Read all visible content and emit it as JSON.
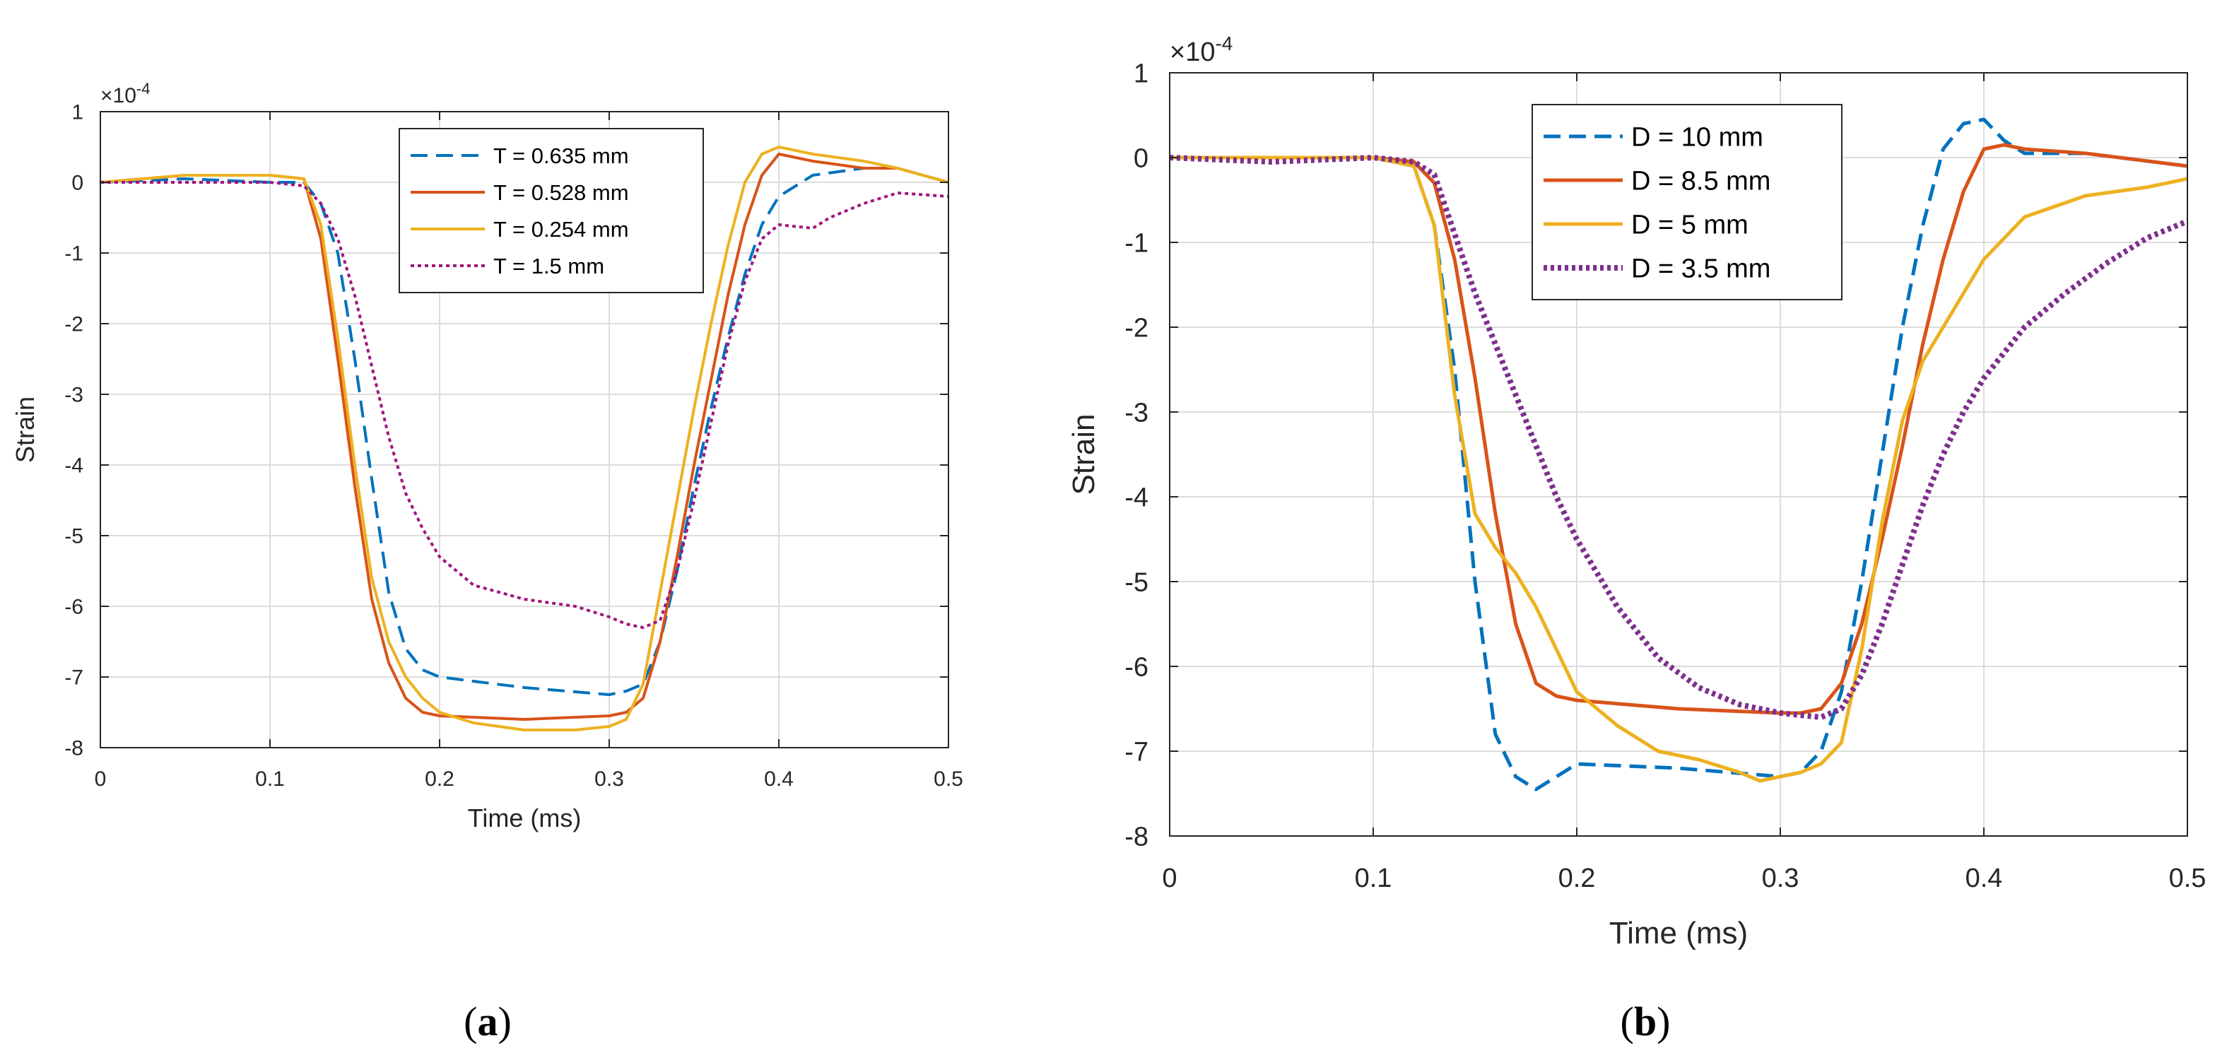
{
  "chart_data": [
    {
      "panel": "a",
      "caption": "a",
      "type": "line",
      "xlabel": "Time (ms)",
      "ylabel": "Strain",
      "exponent_label": "×10",
      "exponent_power": "-4",
      "xlim": [
        0,
        0.5
      ],
      "ylim": [
        -8,
        1
      ],
      "xticks": [
        0,
        0.1,
        0.2,
        0.3,
        0.4,
        0.5
      ],
      "xtick_labels": [
        "0",
        "0.1",
        "0.2",
        "0.3",
        "0.4",
        "0.5"
      ],
      "yticks": [
        1,
        0,
        -1,
        -2,
        -3,
        -4,
        -5,
        -6,
        -7,
        -8
      ],
      "ytick_labels": [
        "1",
        "0",
        "-1",
        "-2",
        "-3",
        "-4",
        "-5",
        "-6",
        "-7",
        "-8"
      ],
      "grid": true,
      "legend_position": "top-right",
      "series": [
        {
          "name": "T = 0.635 mm",
          "color": "#0072BD",
          "dash": "dashed",
          "x": [
            0,
            0.05,
            0.1,
            0.12,
            0.13,
            0.14,
            0.15,
            0.16,
            0.17,
            0.18,
            0.19,
            0.2,
            0.25,
            0.3,
            0.31,
            0.32,
            0.33,
            0.34,
            0.35,
            0.36,
            0.37,
            0.38,
            0.39,
            0.4,
            0.42,
            0.45,
            0.47,
            0.5
          ],
          "y": [
            0,
            0.05,
            0,
            0,
            -0.3,
            -1.0,
            -2.5,
            -4.2,
            -5.8,
            -6.6,
            -6.9,
            -7.0,
            -7.15,
            -7.25,
            -7.2,
            -7.1,
            -6.5,
            -5.5,
            -4.3,
            -3.2,
            -2.2,
            -1.3,
            -0.6,
            -0.2,
            0.1,
            0.2,
            0.2,
            0
          ]
        },
        {
          "name": "T = 0.528 mm",
          "color": "#D95319",
          "dash": "solid",
          "x": [
            0,
            0.05,
            0.1,
            0.12,
            0.13,
            0.14,
            0.15,
            0.16,
            0.17,
            0.18,
            0.19,
            0.2,
            0.25,
            0.3,
            0.31,
            0.32,
            0.33,
            0.34,
            0.35,
            0.36,
            0.37,
            0.38,
            0.39,
            0.4,
            0.42,
            0.45,
            0.47,
            0.5
          ],
          "y": [
            0,
            0.1,
            0.1,
            0.05,
            -0.8,
            -2.5,
            -4.3,
            -5.9,
            -6.8,
            -7.3,
            -7.5,
            -7.55,
            -7.6,
            -7.55,
            -7.5,
            -7.3,
            -6.5,
            -5.3,
            -4.0,
            -2.8,
            -1.6,
            -0.6,
            0.1,
            0.4,
            0.3,
            0.2,
            0.2,
            0
          ]
        },
        {
          "name": "T = 0.254 mm",
          "color": "#EDB120",
          "dash": "solid",
          "x": [
            0,
            0.05,
            0.1,
            0.12,
            0.13,
            0.14,
            0.15,
            0.16,
            0.17,
            0.18,
            0.19,
            0.2,
            0.22,
            0.25,
            0.28,
            0.3,
            0.31,
            0.32,
            0.33,
            0.34,
            0.35,
            0.36,
            0.37,
            0.38,
            0.39,
            0.4,
            0.42,
            0.45,
            0.47,
            0.5
          ],
          "y": [
            0,
            0.1,
            0.1,
            0.05,
            -0.6,
            -2.2,
            -4.0,
            -5.6,
            -6.5,
            -7.0,
            -7.3,
            -7.5,
            -7.65,
            -7.75,
            -7.75,
            -7.7,
            -7.6,
            -7.1,
            -5.8,
            -4.5,
            -3.2,
            -2.0,
            -0.9,
            0,
            0.4,
            0.5,
            0.4,
            0.3,
            0.2,
            0
          ]
        },
        {
          "name": "T = 1.5 mm",
          "color": "#A2147E",
          "dash": "dotted",
          "x": [
            0,
            0.05,
            0.1,
            0.12,
            0.13,
            0.14,
            0.15,
            0.16,
            0.17,
            0.18,
            0.19,
            0.2,
            0.22,
            0.25,
            0.28,
            0.3,
            0.31,
            0.32,
            0.33,
            0.34,
            0.35,
            0.36,
            0.37,
            0.38,
            0.39,
            0.4,
            0.42,
            0.43,
            0.45,
            0.47,
            0.5
          ],
          "y": [
            0,
            0,
            0,
            -0.05,
            -0.3,
            -0.8,
            -1.6,
            -2.6,
            -3.6,
            -4.4,
            -4.9,
            -5.3,
            -5.7,
            -5.9,
            -6.0,
            -6.15,
            -6.25,
            -6.3,
            -6.2,
            -5.5,
            -4.5,
            -3.4,
            -2.3,
            -1.4,
            -0.8,
            -0.6,
            -0.65,
            -0.5,
            -0.3,
            -0.15,
            -0.2
          ]
        }
      ]
    },
    {
      "panel": "b",
      "caption": "b",
      "type": "line",
      "xlabel": "Time (ms)",
      "ylabel": "Strain",
      "exponent_label": "×10",
      "exponent_power": "-4",
      "xlim": [
        0,
        0.5
      ],
      "ylim": [
        -8,
        1
      ],
      "xticks": [
        0,
        0.1,
        0.2,
        0.3,
        0.4,
        0.5
      ],
      "xtick_labels": [
        "0",
        "0.1",
        "0.2",
        "0.3",
        "0.4",
        "0.5"
      ],
      "yticks": [
        1,
        0,
        -1,
        -2,
        -3,
        -4,
        -5,
        -6,
        -7,
        -8
      ],
      "ytick_labels": [
        "1",
        "0",
        "-1",
        "-2",
        "-3",
        "-4",
        "-5",
        "-6",
        "-7",
        "-8"
      ],
      "grid": true,
      "legend_position": "top-center",
      "series": [
        {
          "name": "D = 10 mm",
          "color": "#0072BD",
          "dash": "dashed",
          "x": [
            0,
            0.05,
            0.1,
            0.12,
            0.13,
            0.14,
            0.15,
            0.16,
            0.17,
            0.18,
            0.19,
            0.2,
            0.25,
            0.3,
            0.31,
            0.32,
            0.33,
            0.34,
            0.35,
            0.36,
            0.37,
            0.38,
            0.39,
            0.4,
            0.41,
            0.42,
            0.45,
            0.5
          ],
          "y": [
            0,
            0,
            0,
            -0.1,
            -0.8,
            -2.5,
            -5.0,
            -6.8,
            -7.3,
            -7.45,
            -7.3,
            -7.15,
            -7.2,
            -7.3,
            -7.25,
            -7.0,
            -6.3,
            -5.0,
            -3.5,
            -2.0,
            -0.8,
            0.1,
            0.4,
            0.45,
            0.2,
            0.05,
            0.05,
            -0.1
          ]
        },
        {
          "name": "D = 8.5 mm",
          "color": "#D95319",
          "dash": "solid",
          "x": [
            0,
            0.05,
            0.1,
            0.12,
            0.13,
            0.14,
            0.15,
            0.16,
            0.17,
            0.18,
            0.19,
            0.2,
            0.25,
            0.3,
            0.31,
            0.32,
            0.33,
            0.34,
            0.35,
            0.36,
            0.37,
            0.38,
            0.39,
            0.4,
            0.41,
            0.42,
            0.45,
            0.5
          ],
          "y": [
            0,
            0,
            0,
            -0.05,
            -0.3,
            -1.2,
            -2.6,
            -4.2,
            -5.5,
            -6.2,
            -6.35,
            -6.4,
            -6.5,
            -6.55,
            -6.55,
            -6.5,
            -6.2,
            -5.5,
            -4.5,
            -3.4,
            -2.2,
            -1.2,
            -0.4,
            0.1,
            0.15,
            0.1,
            0.05,
            -0.1
          ]
        },
        {
          "name": "D = 5 mm",
          "color": "#EDB120",
          "dash": "solid",
          "x": [
            0,
            0.05,
            0.1,
            0.12,
            0.13,
            0.14,
            0.15,
            0.16,
            0.17,
            0.18,
            0.19,
            0.2,
            0.22,
            0.24,
            0.26,
            0.28,
            0.29,
            0.3,
            0.31,
            0.32,
            0.33,
            0.34,
            0.35,
            0.36,
            0.37,
            0.38,
            0.39,
            0.4,
            0.42,
            0.45,
            0.48,
            0.5
          ],
          "y": [
            0,
            0,
            0,
            -0.1,
            -0.8,
            -2.8,
            -4.2,
            -4.6,
            -4.9,
            -5.3,
            -5.8,
            -6.3,
            -6.7,
            -7.0,
            -7.1,
            -7.25,
            -7.35,
            -7.3,
            -7.25,
            -7.15,
            -6.9,
            -5.8,
            -4.3,
            -3.1,
            -2.4,
            -2.0,
            -1.6,
            -1.2,
            -0.7,
            -0.45,
            -0.35,
            -0.25
          ]
        },
        {
          "name": "D = 3.5 mm",
          "color": "#7E2F8E",
          "dash": "dotted",
          "x": [
            0,
            0.05,
            0.1,
            0.12,
            0.13,
            0.14,
            0.15,
            0.16,
            0.17,
            0.18,
            0.19,
            0.2,
            0.22,
            0.24,
            0.26,
            0.28,
            0.3,
            0.32,
            0.33,
            0.34,
            0.35,
            0.36,
            0.37,
            0.38,
            0.39,
            0.4,
            0.42,
            0.44,
            0.46,
            0.48,
            0.5
          ],
          "y": [
            0,
            -0.05,
            0,
            -0.05,
            -0.2,
            -0.9,
            -1.6,
            -2.2,
            -2.8,
            -3.4,
            -4.0,
            -4.5,
            -5.3,
            -5.9,
            -6.25,
            -6.45,
            -6.55,
            -6.6,
            -6.5,
            -6.1,
            -5.5,
            -4.8,
            -4.1,
            -3.5,
            -3.0,
            -2.6,
            -2.0,
            -1.6,
            -1.25,
            -0.95,
            -0.75
          ]
        }
      ]
    }
  ]
}
